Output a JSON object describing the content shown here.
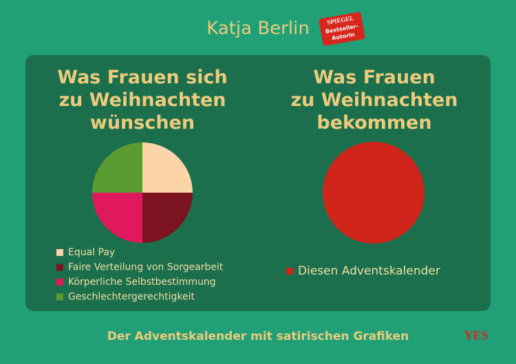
{
  "header": {
    "author": "Katja Berlin",
    "badge": [
      "SPIEGEL",
      "Bestseller-",
      "Autorin"
    ]
  },
  "chart_data": [
    {
      "type": "pie",
      "title": "Was Frauen sich\nzu Weihnachten\nwünschen",
      "categories": [
        "Equal Pay",
        "Faire Verteilung von Sorgearbeit",
        "Körperliche Selbstbestimmung",
        "Geschlechtergerechtigkeit"
      ],
      "values": [
        25,
        25,
        25,
        25
      ],
      "colors": [
        "#fbd4a8",
        "#7b1420",
        "#e2185f",
        "#5a9b32"
      ]
    },
    {
      "type": "pie",
      "title": "Was Frauen\nzu Weihnachten\nbekommen",
      "categories": [
        "Diesen Adventskalender"
      ],
      "values": [
        100
      ],
      "colors": [
        "#cf2419"
      ]
    }
  ],
  "footer": {
    "subtitle": "Der Adventskalender mit satirischen Grafiken",
    "publisher": "YES"
  }
}
